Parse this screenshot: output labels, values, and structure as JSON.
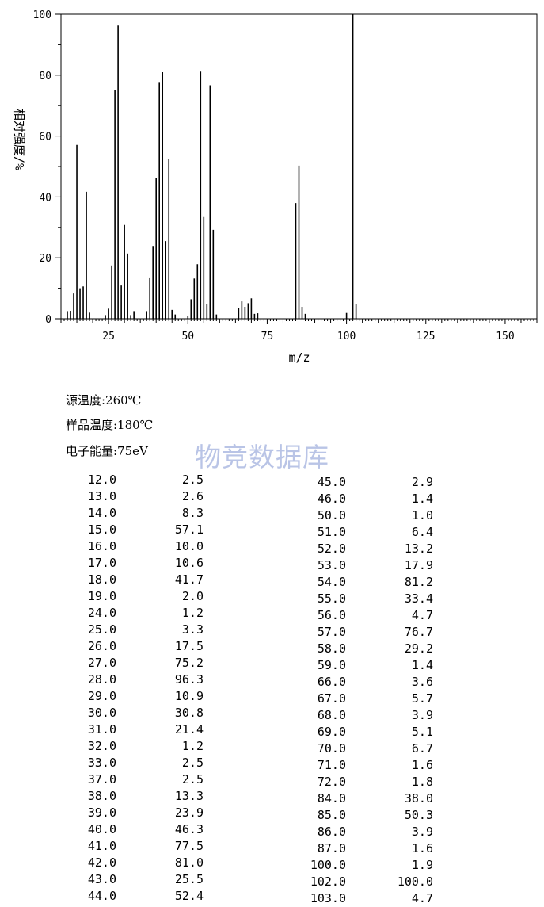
{
  "conditions": {
    "source_temp": "源温度:260℃",
    "sample_temp": "样品温度:180℃",
    "electron_energy": "电子能量:75eV"
  },
  "watermark": "物竞数据库",
  "chart_data": {
    "type": "bar",
    "xlabel": "m/z",
    "ylabel": "相对强度/%",
    "xlim": [
      10,
      160
    ],
    "ylim": [
      0,
      100
    ],
    "xticks": [
      25,
      50,
      75,
      100,
      125,
      150
    ],
    "yticks": [
      0,
      20,
      40,
      60,
      80,
      100
    ],
    "grid": false,
    "x": [
      12,
      13,
      14,
      15,
      16,
      17,
      18,
      19,
      24,
      25,
      26,
      27,
      28,
      29,
      30,
      31,
      32,
      33,
      37,
      38,
      39,
      40,
      41,
      42,
      43,
      44,
      45,
      46,
      50,
      51,
      52,
      53,
      54,
      55,
      56,
      57,
      58,
      59,
      66,
      67,
      68,
      69,
      70,
      71,
      72,
      84,
      85,
      86,
      87,
      100,
      102,
      103
    ],
    "values": [
      2.5,
      2.6,
      8.3,
      57.1,
      10.0,
      10.6,
      41.7,
      2.0,
      1.2,
      3.3,
      17.5,
      75.2,
      96.3,
      10.9,
      30.8,
      21.4,
      1.2,
      2.5,
      2.5,
      13.3,
      23.9,
      46.3,
      77.5,
      81.0,
      25.5,
      52.4,
      2.9,
      1.4,
      1.0,
      6.4,
      13.2,
      17.9,
      81.2,
      33.4,
      4.7,
      76.7,
      29.2,
      1.4,
      3.6,
      5.7,
      3.9,
      5.1,
      6.7,
      1.6,
      1.8,
      38.0,
      50.3,
      3.9,
      1.6,
      1.9,
      100.0,
      4.7
    ]
  },
  "peak_table": {
    "left": [
      [
        "12.0",
        "2.5"
      ],
      [
        "13.0",
        "2.6"
      ],
      [
        "14.0",
        "8.3"
      ],
      [
        "15.0",
        "57.1"
      ],
      [
        "16.0",
        "10.0"
      ],
      [
        "17.0",
        "10.6"
      ],
      [
        "18.0",
        "41.7"
      ],
      [
        "19.0",
        "2.0"
      ],
      [
        "24.0",
        "1.2"
      ],
      [
        "25.0",
        "3.3"
      ],
      [
        "26.0",
        "17.5"
      ],
      [
        "27.0",
        "75.2"
      ],
      [
        "28.0",
        "96.3"
      ],
      [
        "29.0",
        "10.9"
      ],
      [
        "30.0",
        "30.8"
      ],
      [
        "31.0",
        "21.4"
      ],
      [
        "32.0",
        "1.2"
      ],
      [
        "33.0",
        "2.5"
      ],
      [
        "37.0",
        "2.5"
      ],
      [
        "38.0",
        "13.3"
      ],
      [
        "39.0",
        "23.9"
      ],
      [
        "40.0",
        "46.3"
      ],
      [
        "41.0",
        "77.5"
      ],
      [
        "42.0",
        "81.0"
      ],
      [
        "43.0",
        "25.5"
      ],
      [
        "44.0",
        "52.4"
      ]
    ],
    "right": [
      [
        "45.0",
        "2.9"
      ],
      [
        "46.0",
        "1.4"
      ],
      [
        "50.0",
        "1.0"
      ],
      [
        "51.0",
        "6.4"
      ],
      [
        "52.0",
        "13.2"
      ],
      [
        "53.0",
        "17.9"
      ],
      [
        "54.0",
        "81.2"
      ],
      [
        "55.0",
        "33.4"
      ],
      [
        "56.0",
        "4.7"
      ],
      [
        "57.0",
        "76.7"
      ],
      [
        "58.0",
        "29.2"
      ],
      [
        "59.0",
        "1.4"
      ],
      [
        "66.0",
        "3.6"
      ],
      [
        "67.0",
        "5.7"
      ],
      [
        "68.0",
        "3.9"
      ],
      [
        "69.0",
        "5.1"
      ],
      [
        "70.0",
        "6.7"
      ],
      [
        "71.0",
        "1.6"
      ],
      [
        "72.0",
        "1.8"
      ],
      [
        "84.0",
        "38.0"
      ],
      [
        "85.0",
        "50.3"
      ],
      [
        "86.0",
        "3.9"
      ],
      [
        "87.0",
        "1.6"
      ],
      [
        "100.0",
        "1.9"
      ],
      [
        "102.0",
        "100.0"
      ],
      [
        "103.0",
        "4.7"
      ]
    ]
  }
}
